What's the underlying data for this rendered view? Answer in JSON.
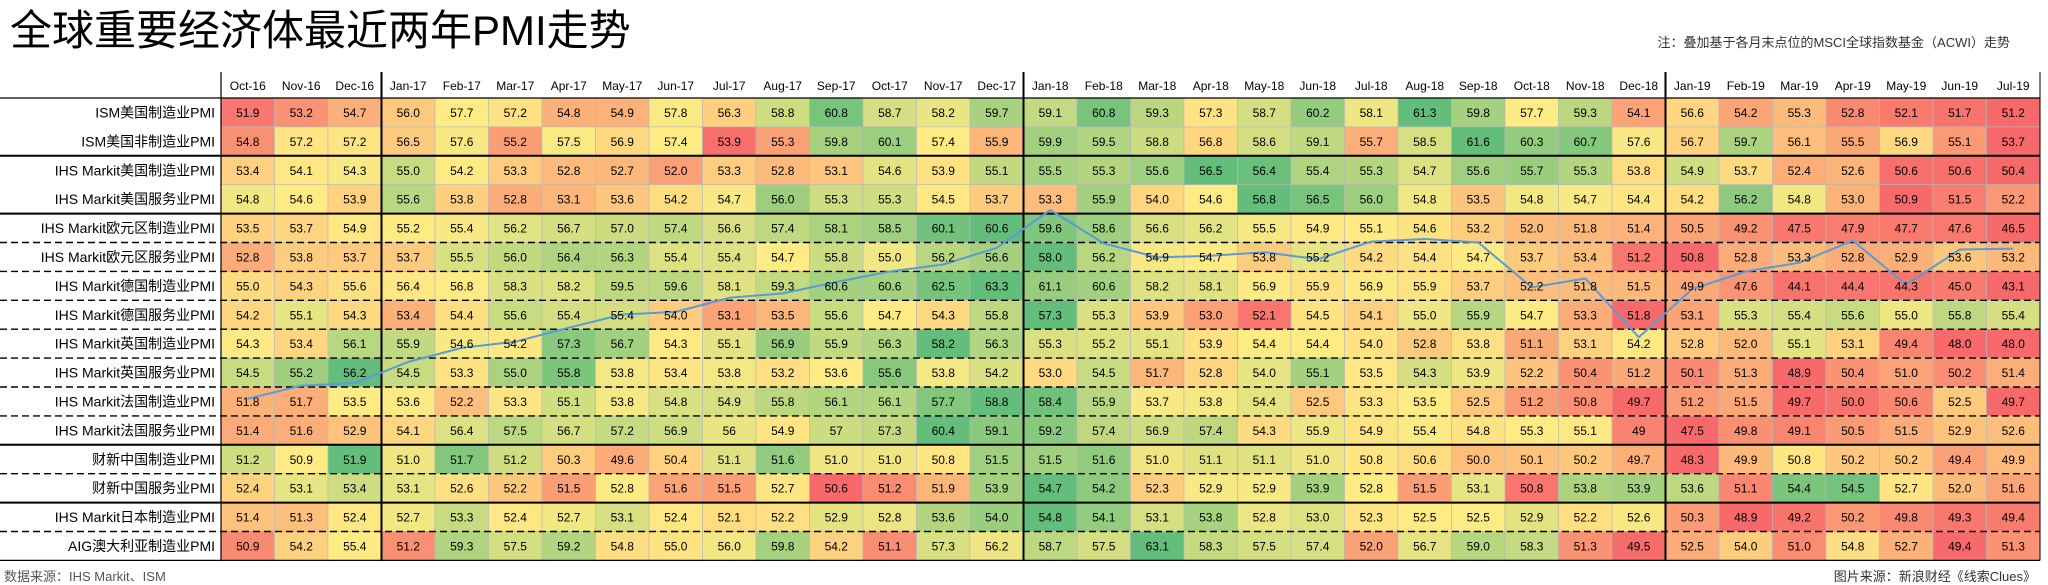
{
  "header": {
    "title": "全球重要经济体最近两年PMI走势",
    "note": "注：叠加基于各月末点位的MSCI全球指数基金（ACWI）走势"
  },
  "footer": {
    "source": "数据来源：IHS Markit、ISM",
    "credit": "图片来源：新浪财经《线索Clues》"
  },
  "colors": {
    "low": "#f8696b",
    "mid": "#ffeb84",
    "high": "#63be7b",
    "line": "#5b9bd5"
  },
  "chart_data": {
    "type": "heatmap",
    "title": "全球重要经济体最近两年PMI走势",
    "columns": [
      "Oct-16",
      "Nov-16",
      "Dec-16",
      "Jan-17",
      "Feb-17",
      "Mar-17",
      "Apr-17",
      "May-17",
      "Jun-17",
      "Jul-17",
      "Aug-17",
      "Sep-17",
      "Oct-17",
      "Nov-17",
      "Dec-17",
      "Jan-18",
      "Feb-18",
      "Mar-18",
      "Apr-18",
      "May-18",
      "Jun-18",
      "Jul-18",
      "Aug-18",
      "Sep-18",
      "Oct-18",
      "Nov-18",
      "Dec-18",
      "Jan-19",
      "Feb-19",
      "Mar-19",
      "Apr-19",
      "May-19",
      "Jun-19",
      "Jul-19"
    ],
    "rows": [
      {
        "name": "ISM美国制造业PMI",
        "values": [
          "51.9",
          "53.2",
          "54.7",
          "56.0",
          "57.7",
          "57.2",
          "54.8",
          "54.9",
          "57.8",
          "56.3",
          "58.8",
          "60.8",
          "58.7",
          "58.2",
          "59.7",
          "59.1",
          "60.8",
          "59.3",
          "57.3",
          "58.7",
          "60.2",
          "58.1",
          "61.3",
          "59.8",
          "57.7",
          "59.3",
          "54.1",
          "56.6",
          "54.2",
          "55.3",
          "52.8",
          "52.1",
          "51.7",
          "51.2"
        ]
      },
      {
        "name": "ISM美国非制造业PMI",
        "values": [
          "54.8",
          "57.2",
          "57.2",
          "56.5",
          "57.6",
          "55.2",
          "57.5",
          "56.9",
          "57.4",
          "53.9",
          "55.3",
          "59.8",
          "60.1",
          "57.4",
          "55.9",
          "59.9",
          "59.5",
          "58.8",
          "56.8",
          "58.6",
          "59.1",
          "55.7",
          "58.5",
          "61.6",
          "60.3",
          "60.7",
          "57.6",
          "56.7",
          "59.7",
          "56.1",
          "55.5",
          "56.9",
          "55.1",
          "53.7"
        ]
      },
      {
        "name": "IHS Markit美国制造业PMI",
        "values": [
          "53.4",
          "54.1",
          "54.3",
          "55.0",
          "54.2",
          "53.3",
          "52.8",
          "52.7",
          "52.0",
          "53.3",
          "52.8",
          "53.1",
          "54.6",
          "53.9",
          "55.1",
          "55.5",
          "55.3",
          "55.6",
          "56.5",
          "56.4",
          "55.4",
          "55.3",
          "54.7",
          "55.6",
          "55.7",
          "55.3",
          "53.8",
          "54.9",
          "53.7",
          "52.4",
          "52.6",
          "50.6",
          "50.6",
          "50.4"
        ]
      },
      {
        "name": "IHS Markit美国服务业PMI",
        "values": [
          "54.8",
          "54.6",
          "53.9",
          "55.6",
          "53.8",
          "52.8",
          "53.1",
          "53.6",
          "54.2",
          "54.7",
          "56.0",
          "55.3",
          "55.3",
          "54.5",
          "53.7",
          "53.3",
          "55.9",
          "54.0",
          "54.6",
          "56.8",
          "56.5",
          "56.0",
          "54.8",
          "53.5",
          "54.8",
          "54.7",
          "54.4",
          "54.2",
          "56.2",
          "54.8",
          "53.0",
          "50.9",
          "51.5",
          "52.2"
        ]
      },
      {
        "name": "IHS Markit欧元区制造业PMI",
        "values": [
          "53.5",
          "53.7",
          "54.9",
          "55.2",
          "55.4",
          "56.2",
          "56.7",
          "57.0",
          "57.4",
          "56.6",
          "57.4",
          "58.1",
          "58.5",
          "60.1",
          "60.6",
          "59.6",
          "58.6",
          "56.6",
          "56.2",
          "55.5",
          "54.9",
          "55.1",
          "54.6",
          "53.2",
          "52.0",
          "51.8",
          "51.4",
          "50.5",
          "49.2",
          "47.5",
          "47.9",
          "47.7",
          "47.6",
          "46.5"
        ]
      },
      {
        "name": "IHS Markit欧元区服务业PMI",
        "values": [
          "52.8",
          "53.8",
          "53.7",
          "53.7",
          "55.5",
          "56.0",
          "56.4",
          "56.3",
          "55.4",
          "55.4",
          "54.7",
          "55.8",
          "55.0",
          "56.2",
          "56.6",
          "58.0",
          "56.2",
          "54.9",
          "54.7",
          "53.8",
          "55.2",
          "54.2",
          "54.4",
          "54.7",
          "53.7",
          "53.4",
          "51.2",
          "50.8",
          "52.8",
          "53.3",
          "52.8",
          "52.9",
          "53.6",
          "53.2"
        ]
      },
      {
        "name": "IHS Markit德国制造业PMI",
        "values": [
          "55.0",
          "54.3",
          "55.6",
          "56.4",
          "56.8",
          "58.3",
          "58.2",
          "59.5",
          "59.6",
          "58.1",
          "59.3",
          "60.6",
          "60.6",
          "62.5",
          "63.3",
          "61.1",
          "60.6",
          "58.2",
          "58.1",
          "56.9",
          "55.9",
          "56.9",
          "55.9",
          "53.7",
          "52.2",
          "51.8",
          "51.5",
          "49.9",
          "47.6",
          "44.1",
          "44.4",
          "44.3",
          "45.0",
          "43.1"
        ]
      },
      {
        "name": "IHS Markit德国服务业PMI",
        "values": [
          "54.2",
          "55.1",
          "54.3",
          "53.4",
          "54.4",
          "55.6",
          "55.4",
          "55.4",
          "54.0",
          "53.1",
          "53.5",
          "55.6",
          "54.7",
          "54.3",
          "55.8",
          "57.3",
          "55.3",
          "53.9",
          "53.0",
          "52.1",
          "54.5",
          "54.1",
          "55.0",
          "55.9",
          "54.7",
          "53.3",
          "51.8",
          "53.1",
          "55.3",
          "55.4",
          "55.6",
          "55.0",
          "55.8",
          "55.4"
        ]
      },
      {
        "name": "IHS Markit英国制造业PMI",
        "values": [
          "54.3",
          "53.4",
          "56.1",
          "55.9",
          "54.6",
          "54.2",
          "57.3",
          "56.7",
          "54.3",
          "55.1",
          "56.9",
          "55.9",
          "56.3",
          "58.2",
          "56.3",
          "55.3",
          "55.2",
          "55.1",
          "53.9",
          "54.4",
          "54.4",
          "54.0",
          "52.8",
          "53.8",
          "51.1",
          "53.1",
          "54.2",
          "52.8",
          "52.0",
          "55.1",
          "53.1",
          "49.4",
          "48.0",
          "48.0"
        ]
      },
      {
        "name": "IHS Markit英国服务业PMI",
        "values": [
          "54.5",
          "55.2",
          "56.2",
          "54.5",
          "53.3",
          "55.0",
          "55.8",
          "53.8",
          "53.4",
          "53.8",
          "53.2",
          "53.6",
          "55.6",
          "53.8",
          "54.2",
          "53.0",
          "54.5",
          "51.7",
          "52.8",
          "54.0",
          "55.1",
          "53.5",
          "54.3",
          "53.9",
          "52.2",
          "50.4",
          "51.2",
          "50.1",
          "51.3",
          "48.9",
          "50.4",
          "51.0",
          "50.2",
          "51.4"
        ]
      },
      {
        "name": "IHS Markit法国制造业PMI",
        "values": [
          "51.8",
          "51.7",
          "53.5",
          "53.6",
          "52.2",
          "53.3",
          "55.1",
          "53.8",
          "54.8",
          "54.9",
          "55.8",
          "56.1",
          "56.1",
          "57.7",
          "58.8",
          "58.4",
          "55.9",
          "53.7",
          "53.8",
          "54.4",
          "52.5",
          "53.3",
          "53.5",
          "52.5",
          "51.2",
          "50.8",
          "49.7",
          "51.2",
          "51.5",
          "49.7",
          "50.0",
          "50.6",
          "52.5",
          "49.7"
        ]
      },
      {
        "name": "IHS Markit法国服务业PMI",
        "values": [
          "51.4",
          "51.6",
          "52.9",
          "54.1",
          "56.4",
          "57.5",
          "56.7",
          "57.2",
          "56.9",
          "56",
          "54.9",
          "57",
          "57.3",
          "60.4",
          "59.1",
          "59.2",
          "57.4",
          "56.9",
          "57.4",
          "54.3",
          "55.9",
          "54.9",
          "55.4",
          "54.8",
          "55.3",
          "55.1",
          "49",
          "47.5",
          "49.8",
          "49.1",
          "50.5",
          "51.5",
          "52.9",
          "52.6"
        ]
      },
      {
        "name": "财新中国制造业PMI",
        "values": [
          "51.2",
          "50.9",
          "51.9",
          "51.0",
          "51.7",
          "51.2",
          "50.3",
          "49.6",
          "50.4",
          "51.1",
          "51.6",
          "51.0",
          "51.0",
          "50.8",
          "51.5",
          "51.5",
          "51.6",
          "51.0",
          "51.1",
          "51.1",
          "51.0",
          "50.8",
          "50.6",
          "50.0",
          "50.1",
          "50.2",
          "49.7",
          "48.3",
          "49.9",
          "50.8",
          "50.2",
          "50.2",
          "49.4",
          "49.9"
        ]
      },
      {
        "name": "财新中国服务业PMI",
        "values": [
          "52.4",
          "53.1",
          "53.4",
          "53.1",
          "52.6",
          "52.2",
          "51.5",
          "52.8",
          "51.6",
          "51.5",
          "52.7",
          "50.6",
          "51.2",
          "51.9",
          "53.9",
          "54.7",
          "54.2",
          "52.3",
          "52.9",
          "52.9",
          "53.9",
          "52.8",
          "51.5",
          "53.1",
          "50.8",
          "53.8",
          "53.9",
          "53.6",
          "51.1",
          "54.4",
          "54.5",
          "52.7",
          "52.0",
          "51.6"
        ]
      },
      {
        "name": "IHS Markit日本制造业PMI",
        "values": [
          "51.4",
          "51.3",
          "52.4",
          "52.7",
          "53.3",
          "52.4",
          "52.7",
          "53.1",
          "52.4",
          "52.1",
          "52.2",
          "52.9",
          "52.8",
          "53.6",
          "54.0",
          "54.8",
          "54.1",
          "53.1",
          "53.8",
          "52.8",
          "53.0",
          "52.3",
          "52.5",
          "52.5",
          "52.9",
          "52.2",
          "52.6",
          "50.3",
          "48.9",
          "49.2",
          "50.2",
          "49.8",
          "49.3",
          "49.4"
        ]
      },
      {
        "name": "AIG澳大利亚制造业PMI",
        "values": [
          "50.9",
          "54.2",
          "55.4",
          "51.2",
          "59.3",
          "57.5",
          "59.2",
          "54.8",
          "55.0",
          "56.0",
          "59.8",
          "54.2",
          "51.1",
          "57.3",
          "56.2",
          "58.7",
          "57.5",
          "63.1",
          "58.3",
          "57.5",
          "57.4",
          "52.0",
          "56.7",
          "59.0",
          "58.3",
          "51.3",
          "49.5",
          "52.5",
          "54.0",
          "51.0",
          "54.8",
          "52.7",
          "49.4",
          "51.3"
        ]
      }
    ],
    "overlay": {
      "type": "line",
      "ylim": [
        54,
        77
      ],
      "values": [
        55.5,
        57.0,
        57.3,
        59.7,
        61.3,
        62.0,
        63.6,
        65.1,
        65.4,
        67.0,
        67.5,
        68.8,
        70.0,
        70.8,
        72.7,
        77.0,
        73.2,
        71.6,
        71.8,
        72.2,
        71.4,
        73.4,
        73.7,
        73.3,
        68.2,
        69.2,
        62.5,
        68.0,
        70.0,
        71.0,
        73.5,
        68.5,
        72.5,
        72.6
      ]
    }
  }
}
